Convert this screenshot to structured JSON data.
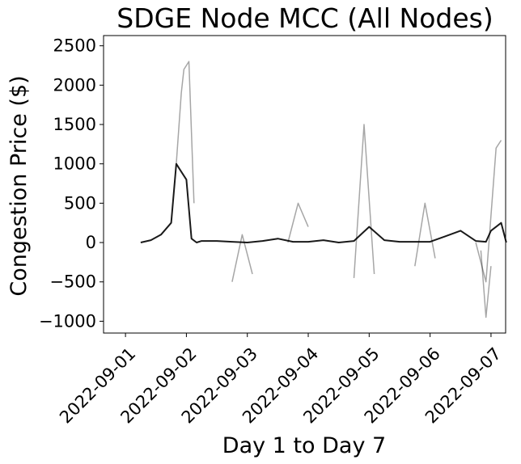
{
  "chart_data": {
    "type": "line",
    "title": "SDGE Node MCC (All Nodes)",
    "xlabel": "Day 1 to Day 7",
    "ylabel": "Congestion Price ($)",
    "xlim": [
      "2022-09-01",
      "2022-09-07"
    ],
    "ylim": [
      -1150,
      2630
    ],
    "x_ticks": [
      "2022-09-01",
      "2022-09-02",
      "2022-09-03",
      "2022-09-04",
      "2022-09-05",
      "2022-09-06",
      "2022-09-07"
    ],
    "y_ticks": [
      2500,
      2000,
      1500,
      1000,
      500,
      0,
      -500,
      -1000
    ],
    "y_tick_labels": [
      "2500",
      "2000",
      "1500",
      "1000",
      "500",
      "0",
      "−500",
      "−1000"
    ],
    "grid": false,
    "legend": "none",
    "line_color": "#000000",
    "series": [
      {
        "x": [
          "2022-09-01 06:00",
          "2022-09-01 10:00",
          "2022-09-01 14:00",
          "2022-09-01 18:00",
          "2022-09-01 20:00",
          "2022-09-01 22:00",
          "2022-09-02 00:00",
          "2022-09-02 02:00",
          "2022-09-02 04:00",
          "2022-09-02 06:00",
          "2022-09-02 12:00",
          "2022-09-02 18:00",
          "2022-09-03 00:00",
          "2022-09-03 06:00",
          "2022-09-03 12:00",
          "2022-09-03 18:00",
          "2022-09-04 00:00",
          "2022-09-04 06:00",
          "2022-09-04 12:00",
          "2022-09-04 18:00",
          "2022-09-05 00:00",
          "2022-09-05 06:00",
          "2022-09-05 12:00",
          "2022-09-05 18:00",
          "2022-09-06 00:00",
          "2022-09-06 06:00",
          "2022-09-06 12:00",
          "2022-09-06 18:00",
          "2022-09-06 22:00",
          "2022-09-07 00:00",
          "2022-09-07 04:00",
          "2022-09-07 06:00"
        ],
        "values": [
          0,
          30,
          100,
          250,
          1000,
          900,
          800,
          50,
          0,
          20,
          20,
          10,
          0,
          20,
          50,
          10,
          10,
          30,
          0,
          20,
          200,
          30,
          10,
          10,
          10,
          80,
          150,
          20,
          10,
          150,
          250,
          0
        ]
      },
      {
        "x": [
          "2022-09-01 20:00",
          "2022-09-01 22:00",
          "2022-09-01 23:00",
          "2022-09-02 01:00",
          "2022-09-02 03:00"
        ],
        "values": [
          1000,
          1900,
          2200,
          2300,
          500
        ]
      },
      {
        "x": [
          "2022-09-02 18:00",
          "2022-09-02 22:00",
          "2022-09-03 02:00"
        ],
        "values": [
          -500,
          100,
          -400
        ]
      },
      {
        "x": [
          "2022-09-03 16:00",
          "2022-09-03 20:00",
          "2022-09-04 00:00"
        ],
        "values": [
          0,
          500,
          200
        ]
      },
      {
        "x": [
          "2022-09-04 18:00",
          "2022-09-04 22:00",
          "2022-09-05 02:00"
        ],
        "values": [
          -450,
          1500,
          -400
        ]
      },
      {
        "x": [
          "2022-09-05 18:00",
          "2022-09-05 22:00",
          "2022-09-06 02:00"
        ],
        "values": [
          -300,
          500,
          -200
        ]
      },
      {
        "x": [
          "2022-09-06 18:00",
          "2022-09-06 22:00",
          "2022-09-07 02:00",
          "2022-09-07 04:00"
        ],
        "values": [
          0,
          -500,
          1200,
          1300
        ]
      },
      {
        "x": [
          "2022-09-06 20:00",
          "2022-09-06 22:00",
          "2022-09-07 00:00"
        ],
        "values": [
          -100,
          -950,
          -300
        ]
      }
    ]
  }
}
